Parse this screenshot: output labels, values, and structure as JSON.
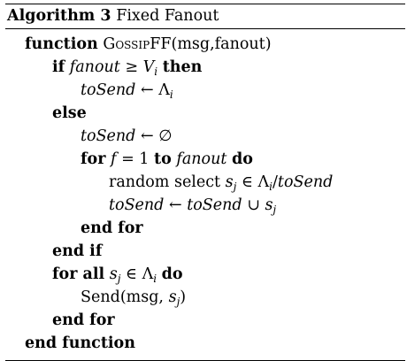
{
  "caption": {
    "label": "Algorithm 3",
    "title": "Fixed Fanout"
  },
  "lines": [
    {
      "parts": [
        "function",
        "GossipFF",
        "(msg,fanout)"
      ]
    },
    {
      "parts": [
        "if",
        "fanout",
        "≥",
        "V",
        "i",
        "then"
      ]
    },
    {
      "parts": [
        "toSend",
        "←",
        "Λ",
        "i"
      ]
    },
    {
      "parts": [
        "else"
      ]
    },
    {
      "parts": [
        "toSend",
        "←",
        "∅"
      ]
    },
    {
      "parts": [
        "for",
        "f",
        "= 1",
        "to",
        "fanout",
        "do"
      ]
    },
    {
      "parts": [
        "random select",
        "s",
        "j",
        "∈",
        "Λ",
        "i",
        "/",
        "toSend"
      ]
    },
    {
      "parts": [
        "toSend",
        "←",
        "toSend",
        "∪",
        "s",
        "j"
      ]
    },
    {
      "parts": [
        "end for"
      ]
    },
    {
      "parts": [
        "end if"
      ]
    },
    {
      "parts": [
        "for all",
        "s",
        "j",
        "∈",
        "Λ",
        "i",
        "do"
      ]
    },
    {
      "parts": [
        "Send(msg,",
        "s",
        "j",
        ")"
      ]
    },
    {
      "parts": [
        "end for"
      ]
    },
    {
      "parts": [
        "end function"
      ]
    }
  ]
}
